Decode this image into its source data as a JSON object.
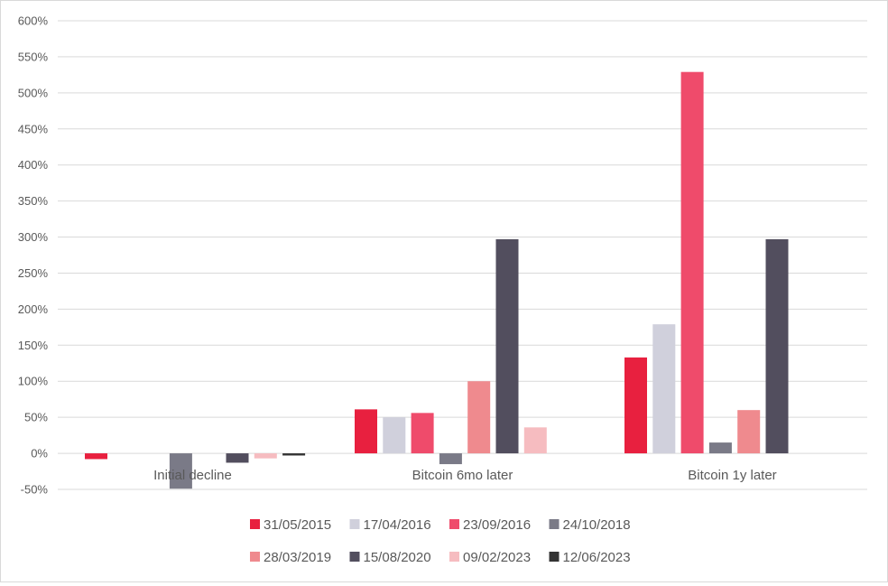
{
  "chart_data": {
    "type": "bar",
    "categories": [
      "Initial decline",
      "Bitcoin 6mo later",
      "Bitcoin 1y later"
    ],
    "series": [
      {
        "name": "31/05/2015",
        "color": "#e8203f",
        "values": [
          -8,
          61,
          133
        ]
      },
      {
        "name": "17/04/2016",
        "color": "#d0d0dc",
        "values": [
          null,
          50,
          179
        ]
      },
      {
        "name": "23/09/2016",
        "color": "#ef4b6b",
        "values": [
          null,
          56,
          529
        ]
      },
      {
        "name": "24/10/2018",
        "color": "#7a7a87",
        "values": [
          -49,
          -15,
          15
        ]
      },
      {
        "name": "28/03/2019",
        "color": "#ef8a8e",
        "values": [
          null,
          100,
          60
        ]
      },
      {
        "name": "15/08/2020",
        "color": "#524e5e",
        "values": [
          -13,
          297,
          297
        ]
      },
      {
        "name": "09/02/2023",
        "color": "#f6bcc0",
        "values": [
          -7,
          36,
          null
        ]
      },
      {
        "name": "12/06/2023",
        "color": "#333333",
        "values": [
          -3,
          null,
          null
        ]
      }
    ],
    "yticks": [
      "-50%",
      "0%",
      "50%",
      "100%",
      "150%",
      "200%",
      "250%",
      "300%",
      "350%",
      "400%",
      "450%",
      "500%",
      "550%",
      "600%"
    ],
    "ylim": [
      -50,
      600
    ],
    "grid": true,
    "legend_position": "bottom",
    "title": "",
    "xlabel": "",
    "ylabel": ""
  }
}
